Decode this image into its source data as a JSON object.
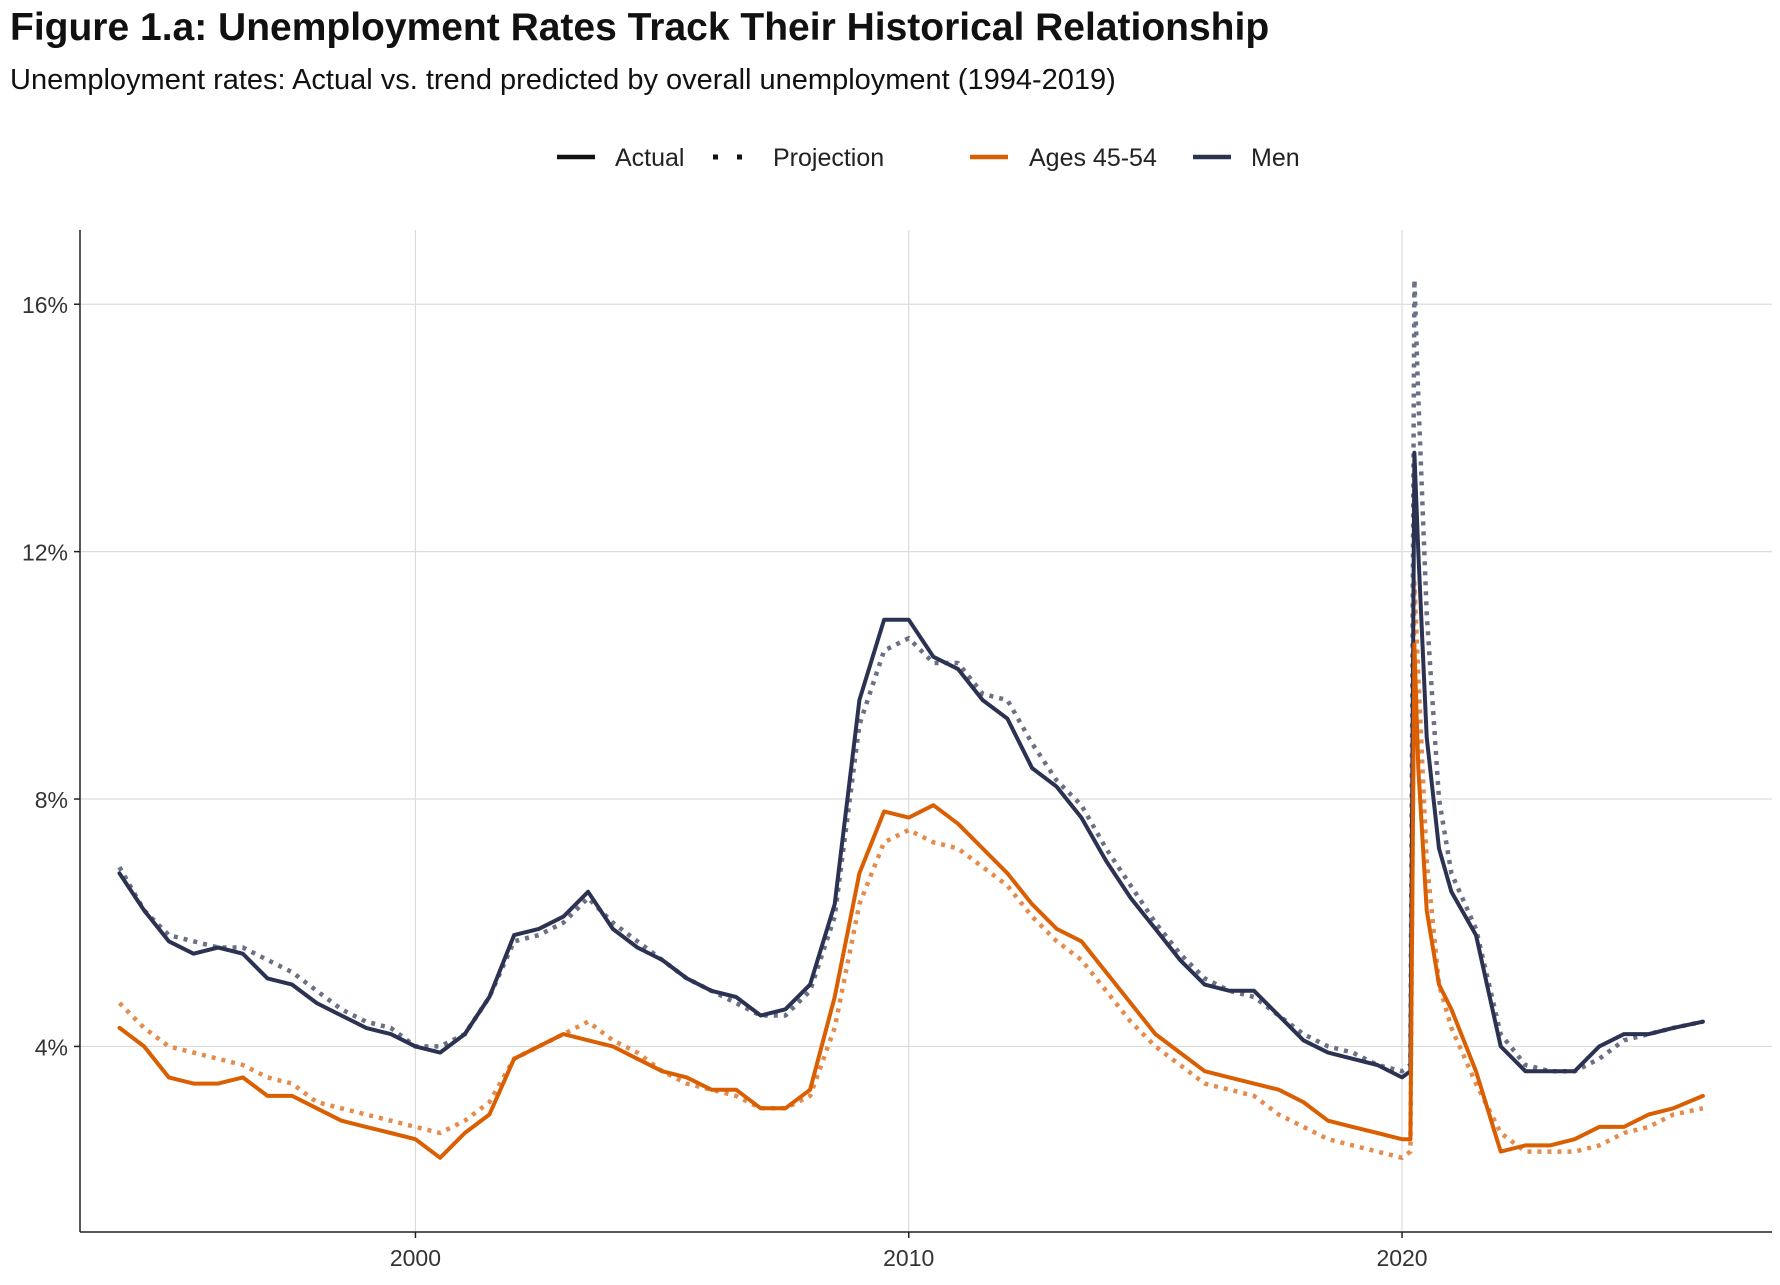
{
  "chart_data": {
    "type": "line",
    "title": "Figure 1.a: Unemployment Rates Track Their Historical Relationship",
    "subtitle": "Unemployment rates: Actual vs. trend predicted by overall unemployment (1994-2019)",
    "xlabel": "",
    "ylabel": "",
    "xlim": [
      1993.2,
      2027.5
    ],
    "ylim": [
      1.0,
      17.2
    ],
    "x_ticks": [
      2000,
      2010,
      2020
    ],
    "x_tick_labels": [
      "2000",
      "2010",
      "2020"
    ],
    "y_ticks": [
      4,
      8,
      12,
      16
    ],
    "y_tick_labels": [
      "4%",
      "8%",
      "12%",
      "16%"
    ],
    "grid": true,
    "legend": {
      "position": "top",
      "linetype_items": [
        {
          "label": "Actual",
          "style": "solid"
        },
        {
          "label": "Projection",
          "style": "dotted"
        }
      ],
      "color_items": [
        {
          "label": "Ages 45-54",
          "color": "#D95F02"
        },
        {
          "label": "Men",
          "color": "#2B3252"
        }
      ]
    },
    "series": [
      {
        "name": "Men",
        "group": "Men",
        "line": "Actual",
        "color": "#2B3252",
        "x": [
          1994.0,
          1994.5,
          1995.0,
          1995.5,
          1996.0,
          1996.5,
          1997.0,
          1997.5,
          1998.0,
          1998.5,
          1999.0,
          1999.5,
          2000.0,
          2000.5,
          2001.0,
          2001.5,
          2002.0,
          2002.5,
          2003.0,
          2003.5,
          2004.0,
          2004.5,
          2005.0,
          2005.5,
          2006.0,
          2006.5,
          2007.0,
          2007.5,
          2008.0,
          2008.5,
          2009.0,
          2009.5,
          2010.0,
          2010.5,
          2011.0,
          2011.5,
          2012.0,
          2012.5,
          2013.0,
          2013.5,
          2014.0,
          2014.5,
          2015.0,
          2015.5,
          2016.0,
          2016.5,
          2017.0,
          2017.5,
          2018.0,
          2018.5,
          2019.0,
          2019.5,
          2020.0,
          2020.17,
          2020.25,
          2020.33,
          2020.5,
          2020.75,
          2021.0,
          2021.5,
          2022.0,
          2022.5,
          2023.0,
          2023.5,
          2024.0,
          2024.5,
          2025.0,
          2025.5,
          2026.1
        ],
        "y": [
          6.8,
          6.2,
          5.7,
          5.5,
          5.6,
          5.5,
          5.1,
          5.0,
          4.7,
          4.5,
          4.3,
          4.2,
          4.0,
          3.9,
          4.2,
          4.8,
          5.8,
          5.9,
          6.1,
          6.5,
          5.9,
          5.6,
          5.4,
          5.1,
          4.9,
          4.8,
          4.5,
          4.6,
          5.0,
          6.3,
          9.6,
          10.9,
          10.9,
          10.3,
          10.1,
          9.6,
          9.3,
          8.5,
          8.2,
          7.7,
          7.0,
          6.4,
          5.9,
          5.4,
          5.0,
          4.9,
          4.9,
          4.5,
          4.1,
          3.9,
          3.8,
          3.7,
          3.5,
          3.6,
          13.6,
          12.0,
          9.0,
          7.2,
          6.5,
          5.8,
          4.0,
          3.6,
          3.6,
          3.6,
          4.0,
          4.2,
          4.2,
          4.3,
          4.4
        ]
      },
      {
        "name": "Men",
        "group": "Men",
        "line": "Projection",
        "color": "#5B6179",
        "x": [
          1994.0,
          1994.5,
          1995.0,
          1995.5,
          1996.0,
          1996.5,
          1997.0,
          1997.5,
          1998.0,
          1998.5,
          1999.0,
          1999.5,
          2000.0,
          2000.5,
          2001.0,
          2001.5,
          2002.0,
          2002.5,
          2003.0,
          2003.5,
          2004.0,
          2004.5,
          2005.0,
          2005.5,
          2006.0,
          2006.5,
          2007.0,
          2007.5,
          2008.0,
          2008.5,
          2009.0,
          2009.5,
          2010.0,
          2010.5,
          2011.0,
          2011.5,
          2012.0,
          2012.5,
          2013.0,
          2013.5,
          2014.0,
          2014.5,
          2015.0,
          2015.5,
          2016.0,
          2016.5,
          2017.0,
          2017.5,
          2018.0,
          2018.5,
          2019.0,
          2019.5,
          2020.0,
          2020.17,
          2020.25,
          2020.33,
          2020.5,
          2020.75,
          2021.0,
          2021.5,
          2022.0,
          2022.5,
          2023.0,
          2023.5,
          2024.0,
          2024.5,
          2025.0,
          2025.5,
          2026.1
        ],
        "y": [
          6.9,
          6.2,
          5.8,
          5.7,
          5.6,
          5.6,
          5.4,
          5.2,
          4.9,
          4.6,
          4.4,
          4.3,
          4.0,
          4.0,
          4.2,
          4.8,
          5.7,
          5.8,
          6.0,
          6.4,
          6.0,
          5.7,
          5.4,
          5.1,
          4.9,
          4.7,
          4.5,
          4.5,
          4.9,
          6.1,
          9.2,
          10.4,
          10.6,
          10.2,
          10.2,
          9.7,
          9.6,
          8.9,
          8.3,
          7.9,
          7.2,
          6.6,
          6.0,
          5.5,
          5.1,
          4.9,
          4.8,
          4.5,
          4.2,
          4.0,
          3.9,
          3.7,
          3.6,
          3.7,
          16.4,
          14.5,
          11.0,
          8.0,
          6.8,
          5.9,
          4.2,
          3.7,
          3.6,
          3.6,
          3.8,
          4.1,
          4.2,
          4.3,
          4.4
        ]
      },
      {
        "name": "Ages 45-54",
        "group": "Ages 45-54",
        "line": "Actual",
        "color": "#D95F02",
        "x": [
          1994.0,
          1994.5,
          1995.0,
          1995.5,
          1996.0,
          1996.5,
          1997.0,
          1997.5,
          1998.0,
          1998.5,
          1999.0,
          1999.5,
          2000.0,
          2000.5,
          2001.0,
          2001.5,
          2002.0,
          2002.5,
          2003.0,
          2003.5,
          2004.0,
          2004.5,
          2005.0,
          2005.5,
          2006.0,
          2006.5,
          2007.0,
          2007.5,
          2008.0,
          2008.5,
          2009.0,
          2009.5,
          2010.0,
          2010.5,
          2011.0,
          2011.5,
          2012.0,
          2012.5,
          2013.0,
          2013.5,
          2014.0,
          2014.5,
          2015.0,
          2015.5,
          2016.0,
          2016.5,
          2017.0,
          2017.5,
          2018.0,
          2018.5,
          2019.0,
          2019.5,
          2020.0,
          2020.17,
          2020.25,
          2020.33,
          2020.5,
          2020.75,
          2021.0,
          2021.5,
          2022.0,
          2022.5,
          2023.0,
          2023.5,
          2024.0,
          2024.5,
          2025.0,
          2025.5,
          2026.1
        ],
        "y": [
          4.3,
          4.0,
          3.5,
          3.4,
          3.4,
          3.5,
          3.2,
          3.2,
          3.0,
          2.8,
          2.7,
          2.6,
          2.5,
          2.2,
          2.6,
          2.9,
          3.8,
          4.0,
          4.2,
          4.1,
          4.0,
          3.8,
          3.6,
          3.5,
          3.3,
          3.3,
          3.0,
          3.0,
          3.3,
          4.8,
          6.8,
          7.8,
          7.7,
          7.9,
          7.6,
          7.2,
          6.8,
          6.3,
          5.9,
          5.7,
          5.2,
          4.7,
          4.2,
          3.9,
          3.6,
          3.5,
          3.4,
          3.3,
          3.1,
          2.8,
          2.7,
          2.6,
          2.5,
          2.5,
          10.5,
          8.5,
          6.2,
          5.0,
          4.6,
          3.6,
          2.3,
          2.4,
          2.4,
          2.5,
          2.7,
          2.7,
          2.9,
          3.0,
          3.2
        ]
      },
      {
        "name": "Ages 45-54",
        "group": "Ages 45-54",
        "line": "Projection",
        "color": "#E0803A",
        "x": [
          1994.0,
          1994.5,
          1995.0,
          1995.5,
          1996.0,
          1996.5,
          1997.0,
          1997.5,
          1998.0,
          1998.5,
          1999.0,
          1999.5,
          2000.0,
          2000.5,
          2001.0,
          2001.5,
          2002.0,
          2002.5,
          2003.0,
          2003.5,
          2004.0,
          2004.5,
          2005.0,
          2005.5,
          2006.0,
          2006.5,
          2007.0,
          2007.5,
          2008.0,
          2008.5,
          2009.0,
          2009.5,
          2010.0,
          2010.5,
          2011.0,
          2011.5,
          2012.0,
          2012.5,
          2013.0,
          2013.5,
          2014.0,
          2014.5,
          2015.0,
          2015.5,
          2016.0,
          2016.5,
          2017.0,
          2017.5,
          2018.0,
          2018.5,
          2019.0,
          2019.5,
          2020.0,
          2020.17,
          2020.25,
          2020.33,
          2020.5,
          2020.75,
          2021.0,
          2021.5,
          2022.0,
          2022.5,
          2023.0,
          2023.5,
          2024.0,
          2024.5,
          2025.0,
          2025.5,
          2026.1
        ],
        "y": [
          4.7,
          4.3,
          4.0,
          3.9,
          3.8,
          3.7,
          3.5,
          3.4,
          3.1,
          3.0,
          2.9,
          2.8,
          2.7,
          2.6,
          2.8,
          3.1,
          3.8,
          4.0,
          4.2,
          4.4,
          4.1,
          3.9,
          3.6,
          3.4,
          3.3,
          3.2,
          3.0,
          3.0,
          3.2,
          4.3,
          6.3,
          7.3,
          7.5,
          7.3,
          7.2,
          6.9,
          6.6,
          6.1,
          5.7,
          5.4,
          4.9,
          4.4,
          4.0,
          3.7,
          3.4,
          3.3,
          3.2,
          2.9,
          2.7,
          2.5,
          2.4,
          2.3,
          2.2,
          2.3,
          11.5,
          10.0,
          7.0,
          5.0,
          4.3,
          3.4,
          2.6,
          2.3,
          2.3,
          2.3,
          2.4,
          2.6,
          2.7,
          2.9,
          3.0
        ]
      }
    ]
  }
}
